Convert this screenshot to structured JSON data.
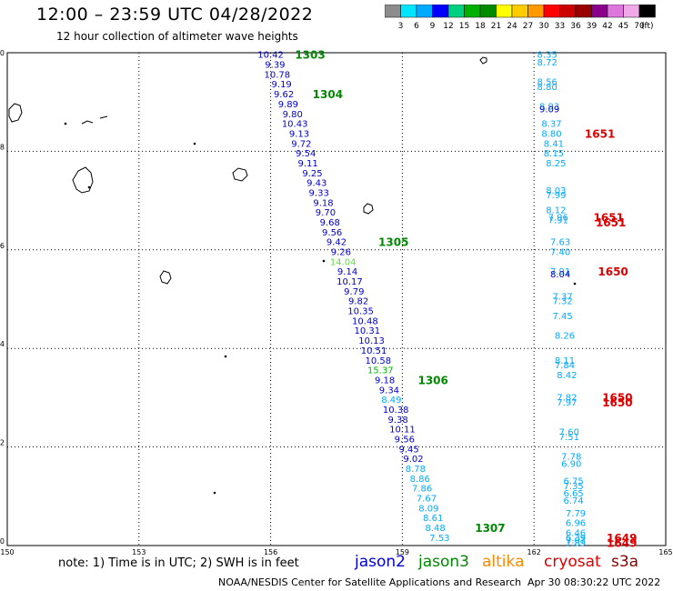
{
  "header": {
    "title": "12:00 – 23:59 UTC 04/28/2022",
    "subtitle": "12 hour collection of altimeter wave heights"
  },
  "colorbar": {
    "unit": "(ft)",
    "ticks": [
      "3",
      "6",
      "9",
      "12",
      "15",
      "18",
      "21",
      "24",
      "27",
      "30",
      "33",
      "36",
      "39",
      "42",
      "45",
      "70"
    ],
    "colors": [
      "#8c8c8c",
      "#00e5ff",
      "#00aaff",
      "#0000ff",
      "#00d080",
      "#00b000",
      "#008a00",
      "#ffff00",
      "#ffcc00",
      "#ff9900",
      "#ff0000",
      "#cc0000",
      "#990000",
      "#8b008b",
      "#dd77dd",
      "#f0a8e8",
      "#000000"
    ]
  },
  "legend": {
    "note": "note:  1) Time is in UTC;  2) SWH is in feet",
    "satellites": [
      {
        "name": "jason2",
        "color": "#0000dd"
      },
      {
        "name": "jason3",
        "color": "#008800"
      },
      {
        "name": "altika",
        "color": "#ff8800"
      },
      {
        "name": "cryosat",
        "color": "#dd0000"
      },
      {
        "name": "s3a",
        "color": "#880000"
      }
    ]
  },
  "footer": {
    "credit": "NOAA/NESDIS Center for Satellite Applications and Research",
    "timestamp": "Apr 30 08:30:22 UTC 2022"
  },
  "chart_data": {
    "type": "scatter",
    "xlim": [
      150,
      165
    ],
    "ylim": [
      0,
      10
    ],
    "xticks": [
      "150",
      "153",
      "156",
      "159",
      "162",
      "165"
    ],
    "yticks": [
      "0",
      "2",
      "4",
      "6",
      "8",
      "10"
    ],
    "grid": true,
    "series": [
      {
        "name": "jason3",
        "color": "#0000cc",
        "points": [
          {
            "x": 156.0,
            "y": 9.95,
            "label": "10.42",
            "c": "#0000cc"
          },
          {
            "x": 156.1,
            "y": 9.75,
            "label": "9.39",
            "c": "#0000cc"
          },
          {
            "x": 156.15,
            "y": 9.55,
            "label": "10.78",
            "c": "#0000cc"
          },
          {
            "x": 156.25,
            "y": 9.35,
            "label": "9.19",
            "c": "#0000cc"
          },
          {
            "x": 156.3,
            "y": 9.15,
            "label": "9.62",
            "c": "#0000cc"
          },
          {
            "x": 156.4,
            "y": 8.95,
            "label": "9.89",
            "c": "#0000cc"
          },
          {
            "x": 156.5,
            "y": 8.75,
            "label": "9.80",
            "c": "#0000cc"
          },
          {
            "x": 156.55,
            "y": 8.55,
            "label": "10.43",
            "c": "#0000cc"
          },
          {
            "x": 156.65,
            "y": 8.35,
            "label": "9.13",
            "c": "#0000cc"
          },
          {
            "x": 156.7,
            "y": 8.15,
            "label": "9.72",
            "c": "#0000cc"
          },
          {
            "x": 156.8,
            "y": 7.95,
            "label": "9.54",
            "c": "#0000cc"
          },
          {
            "x": 156.85,
            "y": 7.75,
            "label": "9.11",
            "c": "#0000cc"
          },
          {
            "x": 156.95,
            "y": 7.55,
            "label": "9.25",
            "c": "#0000cc"
          },
          {
            "x": 157.05,
            "y": 7.35,
            "label": "9.43",
            "c": "#0000cc"
          },
          {
            "x": 157.1,
            "y": 7.15,
            "label": "9.33",
            "c": "#0000cc"
          },
          {
            "x": 157.2,
            "y": 6.95,
            "label": "9.18",
            "c": "#0000cc"
          },
          {
            "x": 157.25,
            "y": 6.75,
            "label": "9.70",
            "c": "#0000cc"
          },
          {
            "x": 157.35,
            "y": 6.55,
            "label": "9.68",
            "c": "#0000cc"
          },
          {
            "x": 157.4,
            "y": 6.35,
            "label": "9.56",
            "c": "#0000cc"
          },
          {
            "x": 157.5,
            "y": 6.15,
            "label": "9.42",
            "c": "#0000cc"
          },
          {
            "x": 157.6,
            "y": 5.95,
            "label": "9.26",
            "c": "#0000cc"
          },
          {
            "x": 157.65,
            "y": 5.75,
            "label": "14.04",
            "c": "#66dd44"
          },
          {
            "x": 157.75,
            "y": 5.55,
            "label": "9.14",
            "c": "#0000cc"
          },
          {
            "x": 157.8,
            "y": 5.35,
            "label": "10.17",
            "c": "#0000cc"
          },
          {
            "x": 157.9,
            "y": 5.15,
            "label": "9.79",
            "c": "#0000cc"
          },
          {
            "x": 158.0,
            "y": 4.95,
            "label": "9.82",
            "c": "#0000cc"
          },
          {
            "x": 158.05,
            "y": 4.75,
            "label": "10.35",
            "c": "#0000cc"
          },
          {
            "x": 158.15,
            "y": 4.55,
            "label": "10.48",
            "c": "#0000cc"
          },
          {
            "x": 158.2,
            "y": 4.35,
            "label": "10.31",
            "c": "#0000cc"
          },
          {
            "x": 158.3,
            "y": 4.15,
            "label": "10.13",
            "c": "#0000cc"
          },
          {
            "x": 158.35,
            "y": 3.95,
            "label": "10.51",
            "c": "#0000cc"
          },
          {
            "x": 158.45,
            "y": 3.75,
            "label": "10.58",
            "c": "#0000cc"
          },
          {
            "x": 158.5,
            "y": 3.55,
            "label": "15.37",
            "c": "#00bb00"
          },
          {
            "x": 158.6,
            "y": 3.35,
            "label": "9.18",
            "c": "#0000cc"
          },
          {
            "x": 158.7,
            "y": 3.15,
            "label": "9.34",
            "c": "#0000cc"
          },
          {
            "x": 158.75,
            "y": 2.95,
            "label": "8.49",
            "c": "#00aaff"
          },
          {
            "x": 158.85,
            "y": 2.75,
            "label": "10.38",
            "c": "#0000cc"
          },
          {
            "x": 158.9,
            "y": 2.55,
            "label": "9.38",
            "c": "#0000cc"
          },
          {
            "x": 159.0,
            "y": 2.35,
            "label": "10.11",
            "c": "#0000cc"
          },
          {
            "x": 159.05,
            "y": 2.15,
            "label": "9.56",
            "c": "#0000cc"
          },
          {
            "x": 159.15,
            "y": 1.95,
            "label": "9.45",
            "c": "#0000cc"
          },
          {
            "x": 159.25,
            "y": 1.75,
            "label": "9.02",
            "c": "#0000cc"
          },
          {
            "x": 159.3,
            "y": 1.55,
            "label": "8.78",
            "c": "#00aaff"
          },
          {
            "x": 159.4,
            "y": 1.35,
            "label": "8.86",
            "c": "#00aaff"
          },
          {
            "x": 159.45,
            "y": 1.15,
            "label": "7.86",
            "c": "#00aaff"
          },
          {
            "x": 159.55,
            "y": 0.95,
            "label": "7.67",
            "c": "#00aaff"
          },
          {
            "x": 159.6,
            "y": 0.75,
            "label": "8.09",
            "c": "#00aaff"
          },
          {
            "x": 159.7,
            "y": 0.55,
            "label": "8.61",
            "c": "#00aaff"
          },
          {
            "x": 159.75,
            "y": 0.35,
            "label": "8.48",
            "c": "#00aaff"
          },
          {
            "x": 159.85,
            "y": 0.15,
            "label": "7.53",
            "c": "#00aaff"
          }
        ]
      },
      {
        "name": "cryosat",
        "color": "#00aaff",
        "points": [
          {
            "x": 162.3,
            "y": 9.95,
            "label": "8.35",
            "c": "#00aaff"
          },
          {
            "x": 162.3,
            "y": 9.8,
            "label": "8.72",
            "c": "#00aaff"
          },
          {
            "x": 162.3,
            "y": 9.4,
            "label": "8.56",
            "c": "#00aaff"
          },
          {
            "x": 162.3,
            "y": 9.3,
            "label": "8.80",
            "c": "#00aaff"
          },
          {
            "x": 162.35,
            "y": 8.9,
            "label": "8.93",
            "c": "#00aaff"
          },
          {
            "x": 162.35,
            "y": 8.85,
            "label": "9.09",
            "c": "#0000cc"
          },
          {
            "x": 162.4,
            "y": 8.55,
            "label": "8.37",
            "c": "#00aaff"
          },
          {
            "x": 162.4,
            "y": 8.35,
            "label": "8.80",
            "c": "#00aaff"
          },
          {
            "x": 162.45,
            "y": 8.15,
            "label": "8.41",
            "c": "#00aaff"
          },
          {
            "x": 162.45,
            "y": 7.95,
            "label": "8.15",
            "c": "#00aaff"
          },
          {
            "x": 162.5,
            "y": 7.75,
            "label": "8.25",
            "c": "#00aaff"
          },
          {
            "x": 162.5,
            "y": 7.2,
            "label": "8.03",
            "c": "#00aaff"
          },
          {
            "x": 162.5,
            "y": 7.1,
            "label": "7.99",
            "c": "#00aaff"
          },
          {
            "x": 162.5,
            "y": 6.8,
            "label": "8.12",
            "c": "#00aaff"
          },
          {
            "x": 162.55,
            "y": 6.65,
            "label": "7.96",
            "c": "#00aaff"
          },
          {
            "x": 162.55,
            "y": 6.6,
            "label": "7.91",
            "c": "#00aaff"
          },
          {
            "x": 162.6,
            "y": 6.15,
            "label": "7.63",
            "c": "#00aaff"
          },
          {
            "x": 162.6,
            "y": 5.95,
            "label": "7.40",
            "c": "#00aaff"
          },
          {
            "x": 162.6,
            "y": 5.55,
            "label": "7.91",
            "c": "#00aaff"
          },
          {
            "x": 162.6,
            "y": 5.5,
            "label": "8.04",
            "c": "#0000cc"
          },
          {
            "x": 162.65,
            "y": 5.05,
            "label": "7.37",
            "c": "#00aaff"
          },
          {
            "x": 162.65,
            "y": 4.95,
            "label": "7.32",
            "c": "#00aaff"
          },
          {
            "x": 162.65,
            "y": 4.65,
            "label": "7.45",
            "c": "#00aaff"
          },
          {
            "x": 162.7,
            "y": 4.25,
            "label": "8.26",
            "c": "#00aaff"
          },
          {
            "x": 162.7,
            "y": 3.75,
            "label": "8.11",
            "c": "#00aaff"
          },
          {
            "x": 162.7,
            "y": 3.65,
            "label": "7.84",
            "c": "#00aaff"
          },
          {
            "x": 162.75,
            "y": 3.45,
            "label": "8.42",
            "c": "#00aaff"
          },
          {
            "x": 162.75,
            "y": 3.0,
            "label": "7.82",
            "c": "#00aaff"
          },
          {
            "x": 162.75,
            "y": 2.9,
            "label": "7.97",
            "c": "#00aaff"
          },
          {
            "x": 162.8,
            "y": 2.3,
            "label": "7.60",
            "c": "#00aaff"
          },
          {
            "x": 162.8,
            "y": 2.2,
            "label": "7.51",
            "c": "#00aaff"
          },
          {
            "x": 162.85,
            "y": 1.8,
            "label": "7.78",
            "c": "#00aaff"
          },
          {
            "x": 162.85,
            "y": 1.65,
            "label": "6.90",
            "c": "#00aaff"
          },
          {
            "x": 162.9,
            "y": 1.3,
            "label": "6.75",
            "c": "#00aaff"
          },
          {
            "x": 162.9,
            "y": 1.2,
            "label": "7.35",
            "c": "#00aaff"
          },
          {
            "x": 162.9,
            "y": 1.05,
            "label": "6.65",
            "c": "#00aaff"
          },
          {
            "x": 162.9,
            "y": 0.9,
            "label": "6.74",
            "c": "#00aaff"
          },
          {
            "x": 162.95,
            "y": 0.65,
            "label": "7.79",
            "c": "#00aaff"
          },
          {
            "x": 162.95,
            "y": 0.45,
            "label": "6.96",
            "c": "#00aaff"
          },
          {
            "x": 162.95,
            "y": 0.25,
            "label": "6.46",
            "c": "#00aaff"
          },
          {
            "x": 162.95,
            "y": 0.15,
            "label": "6.39",
            "c": "#00aaff"
          },
          {
            "x": 162.95,
            "y": 0.1,
            "label": "7.07",
            "c": "#00aaff"
          },
          {
            "x": 162.95,
            "y": 0.05,
            "label": "7.89",
            "c": "#00aaff"
          }
        ]
      }
    ],
    "annotations": [
      {
        "x": 156.9,
        "y": 9.95,
        "text": "1303",
        "c": "#008800"
      },
      {
        "x": 157.3,
        "y": 9.15,
        "text": "1304",
        "c": "#008800"
      },
      {
        "x": 158.8,
        "y": 6.15,
        "text": "1305",
        "c": "#008800"
      },
      {
        "x": 159.7,
        "y": 3.35,
        "text": "1306",
        "c": "#008800"
      },
      {
        "x": 161.0,
        "y": 0.35,
        "text": "1307",
        "c": "#008800"
      },
      {
        "x": 163.5,
        "y": 8.35,
        "text": "1651",
        "c": "#dd0000"
      },
      {
        "x": 163.7,
        "y": 6.65,
        "text": "1651",
        "c": "#dd0000"
      },
      {
        "x": 163.75,
        "y": 6.55,
        "text": "1651",
        "c": "#dd0000"
      },
      {
        "x": 163.8,
        "y": 5.55,
        "text": "1650",
        "c": "#dd0000"
      },
      {
        "x": 163.9,
        "y": 3.0,
        "text": "1650",
        "c": "#dd0000"
      },
      {
        "x": 163.9,
        "y": 2.9,
        "text": "1650",
        "c": "#dd0000"
      },
      {
        "x": 164.0,
        "y": 0.15,
        "text": "1649",
        "c": "#dd0000"
      },
      {
        "x": 164.0,
        "y": 0.05,
        "text": "1649",
        "c": "#dd0000"
      }
    ]
  }
}
